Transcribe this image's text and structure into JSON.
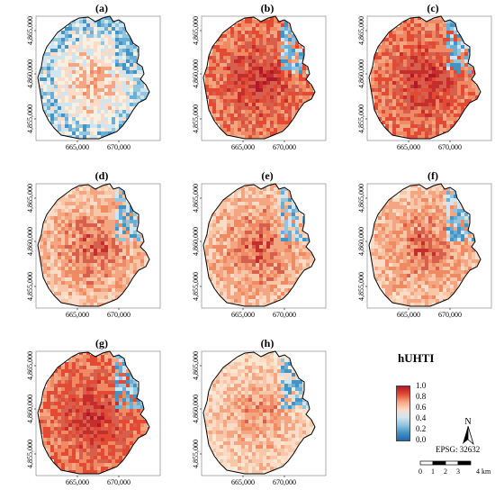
{
  "panels": [
    {
      "label": "(a)",
      "variant": "cool"
    },
    {
      "label": "(b)",
      "variant": "hot"
    },
    {
      "label": "(c)",
      "variant": "hot"
    },
    {
      "label": "(d)",
      "variant": "warm"
    },
    {
      "label": "(e)",
      "variant": "warm"
    },
    {
      "label": "(f)",
      "variant": "warm"
    },
    {
      "label": "(g)",
      "variant": "hot"
    },
    {
      "label": "(h)",
      "variant": "mild"
    }
  ],
  "axes": {
    "y_ticks": [
      "4,865,000",
      "4,860,000",
      "4,855,000"
    ],
    "x_ticks": [
      "665,000",
      "670,000"
    ]
  },
  "legend": {
    "title": "hUHTI",
    "ticks": [
      "1.0",
      "0.8",
      "0.6",
      "0.4",
      "0.2",
      "0.0"
    ],
    "colors": [
      "#b2182b",
      "#e34a33",
      "#f4a582",
      "#fddbc7",
      "#d1e5f0",
      "#92c5de",
      "#4393c3",
      "#2166ac"
    ]
  },
  "north_arrow": {
    "label": "N"
  },
  "crs": "EPSG: 32632",
  "scale": {
    "ticks": [
      "0",
      "1",
      "2",
      "3",
      "4 km"
    ]
  }
}
